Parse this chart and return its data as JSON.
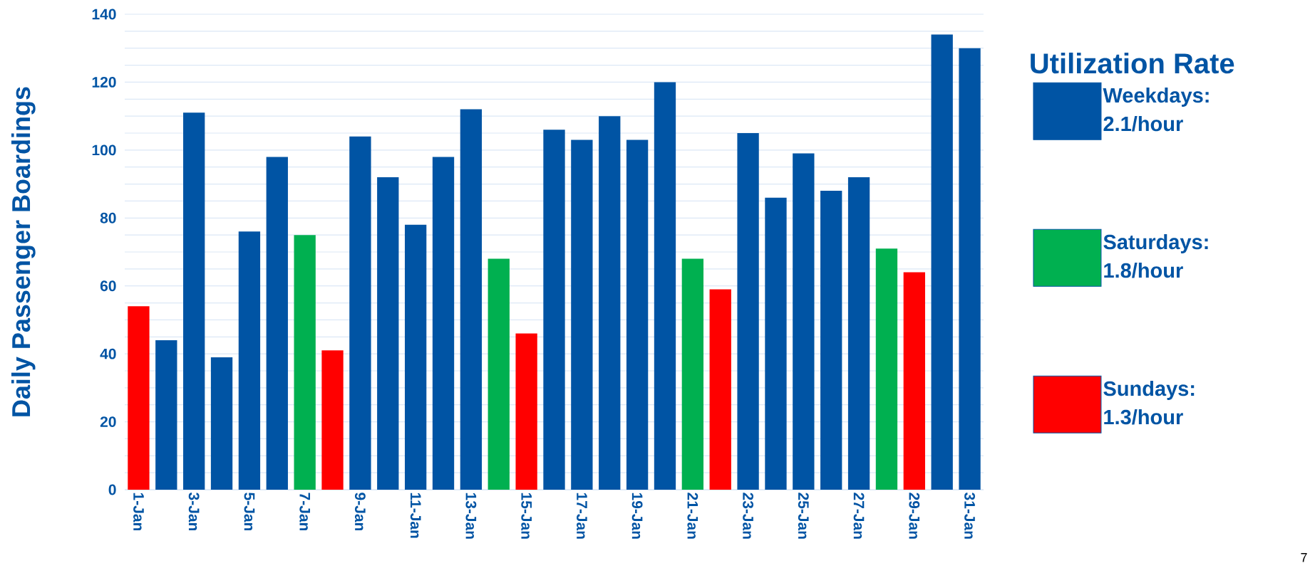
{
  "chart_data": {
    "type": "bar",
    "stacked": true,
    "ylabel": "Daily Passenger Boardings",
    "legend_title": "Utilization Rate",
    "categories": [
      "1-Jan",
      null,
      "3-Jan",
      null,
      "5-Jan",
      null,
      "7-Jan",
      null,
      "9-Jan",
      null,
      "11-Jan",
      null,
      "13-Jan",
      null,
      "15-Jan",
      null,
      "17-Jan",
      null,
      "19-Jan",
      null,
      "21-Jan",
      null,
      "23-Jan",
      null,
      "25-Jan",
      null,
      "27-Jan",
      null,
      "29-Jan",
      null,
      "31-Jan"
    ],
    "series": [
      {
        "name": "Weekdays: 2.1/hour",
        "color": "#0054a4",
        "values": [
          null,
          44,
          111,
          39,
          76,
          98,
          null,
          null,
          104,
          92,
          78,
          98,
          112,
          null,
          null,
          106,
          103,
          110,
          103,
          120,
          null,
          null,
          105,
          86,
          99,
          88,
          92,
          null,
          null,
          134,
          130
        ]
      },
      {
        "name": "Saturdays: 1.8/hour",
        "color": "#00b050",
        "values": [
          null,
          null,
          null,
          null,
          null,
          null,
          75,
          null,
          null,
          null,
          null,
          null,
          null,
          68,
          null,
          null,
          null,
          null,
          null,
          null,
          68,
          null,
          null,
          null,
          null,
          null,
          null,
          71,
          null,
          null,
          null
        ]
      },
      {
        "name": "Sundays: 1.3/hour",
        "color": "#ff0000",
        "values": [
          54,
          null,
          null,
          null,
          null,
          null,
          null,
          41,
          null,
          null,
          null,
          null,
          null,
          null,
          46,
          null,
          null,
          null,
          null,
          null,
          null,
          59,
          null,
          null,
          null,
          null,
          null,
          null,
          64,
          null,
          null
        ]
      }
    ],
    "ylim": [
      0,
      140
    ],
    "yticks": [
      0,
      20,
      40,
      60,
      80,
      100,
      120,
      140
    ],
    "grid": "y",
    "legend": "right",
    "annotations": [
      "7"
    ]
  }
}
